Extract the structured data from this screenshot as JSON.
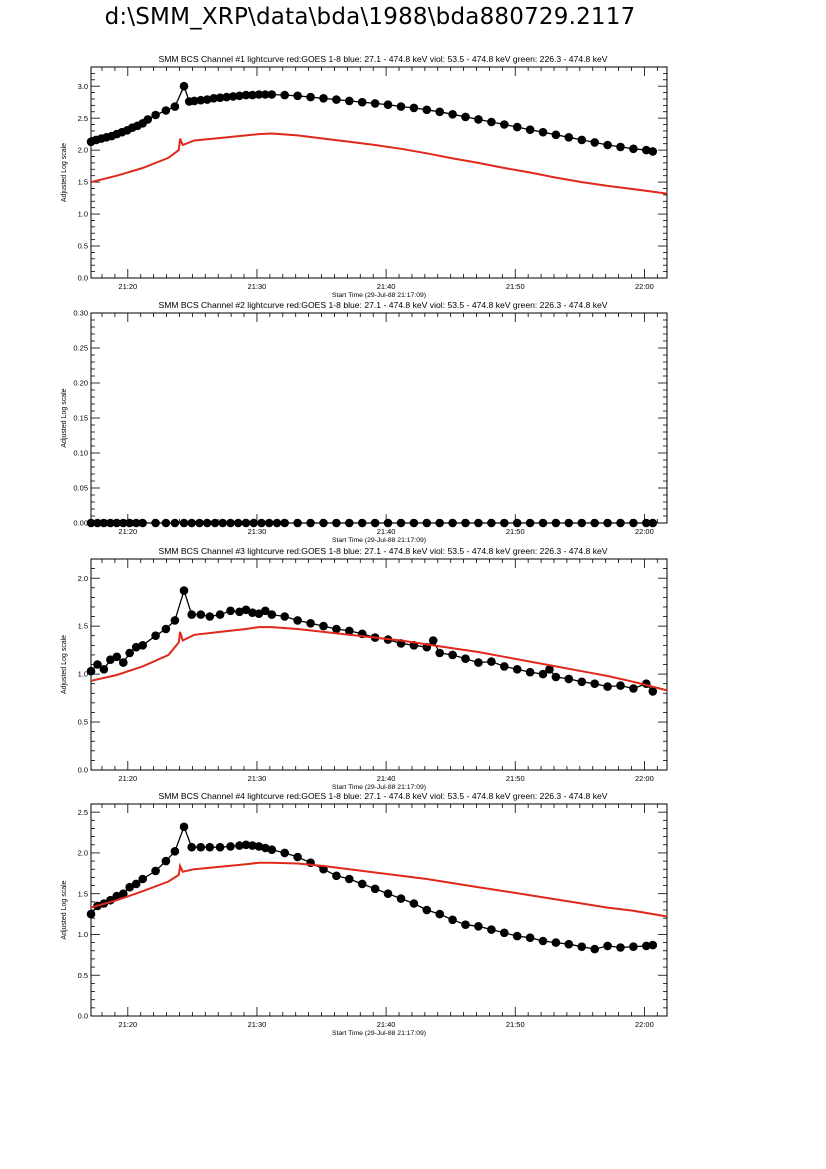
{
  "page": {
    "title": "d:\\SMM_XRP\\data\\bda\\1988\\bda880729.2117"
  },
  "common": {
    "ylabel": "Adjusted Log scale",
    "xlabel": "Start Time (29-Jul-88 21:17:09)",
    "start_time": "21:17:09",
    "x_ticks": [
      "21:20",
      "21:30",
      "21:40",
      "21:50",
      "22:00"
    ],
    "colors": {
      "data": "#000000",
      "goes": "#e0281c"
    }
  },
  "chart_data": [
    {
      "type": "scatter",
      "title": "SMM BCS Channel #1 lightcurve  red:GOES 1-8  blue: 27.1 - 474.8 keV  viol: 53.5 - 474.8 keV  green: 226.3 - 474.8 keV",
      "xlabel": "Start Time (29-Jul-88 21:17:09)",
      "ylabel": "Adjusted Log scale",
      "xlim_minutes": [
        0,
        44.6
      ],
      "ylim": [
        0,
        3.3
      ],
      "y_ticks": [
        0.0,
        0.5,
        1.0,
        1.5,
        2.0,
        2.5,
        3.0
      ],
      "y_tick_labels": [
        "0.0",
        "0.5",
        "1.0",
        "1.5",
        "2.0",
        "2.5",
        "3.0"
      ],
      "series": [
        {
          "role": "bcs",
          "color": "#000000",
          "marker": "circle",
          "x_minutes": [
            0.0,
            0.4,
            0.8,
            1.2,
            1.6,
            2.0,
            2.4,
            2.8,
            3.2,
            3.6,
            4.0,
            4.4,
            5.0,
            5.8,
            6.5,
            7.2,
            7.6,
            8.0,
            8.5,
            9.0,
            9.5,
            10.0,
            10.5,
            11.0,
            11.5,
            12.0,
            12.5,
            13.0,
            13.5,
            14.0,
            15.0,
            16.0,
            17.0,
            18.0,
            19.0,
            20.0,
            21.0,
            22.0,
            23.0,
            24.0,
            25.0,
            26.0,
            27.0,
            28.0,
            29.0,
            30.0,
            31.0,
            32.0,
            33.0,
            34.0,
            35.0,
            36.0,
            37.0,
            38.0,
            39.0,
            40.0,
            41.0,
            42.0,
            43.0,
            43.5
          ],
          "y": [
            2.13,
            2.16,
            2.18,
            2.2,
            2.22,
            2.25,
            2.28,
            2.31,
            2.35,
            2.38,
            2.42,
            2.48,
            2.55,
            2.62,
            2.68,
            3.0,
            2.76,
            2.77,
            2.78,
            2.79,
            2.81,
            2.82,
            2.83,
            2.84,
            2.85,
            2.86,
            2.86,
            2.87,
            2.87,
            2.87,
            2.86,
            2.85,
            2.83,
            2.81,
            2.79,
            2.77,
            2.75,
            2.73,
            2.71,
            2.68,
            2.66,
            2.63,
            2.6,
            2.56,
            2.52,
            2.48,
            2.44,
            2.4,
            2.36,
            2.32,
            2.28,
            2.24,
            2.2,
            2.16,
            2.12,
            2.08,
            2.05,
            2.02,
            2.0,
            1.98
          ]
        },
        {
          "role": "goes",
          "name": "red:GOES 1-8",
          "color": "#e0281c",
          "marker": "none",
          "x_minutes": [
            0,
            2,
            4,
            6,
            6.8,
            6.9,
            7.1,
            8,
            10,
            12,
            13,
            14,
            16,
            18,
            20,
            22,
            24,
            26,
            28,
            30,
            32,
            34,
            36,
            38,
            40,
            42,
            44.6
          ],
          "y": [
            1.5,
            1.6,
            1.72,
            1.88,
            2.0,
            2.18,
            2.08,
            2.15,
            2.19,
            2.23,
            2.25,
            2.26,
            2.23,
            2.18,
            2.13,
            2.08,
            2.02,
            1.95,
            1.87,
            1.8,
            1.72,
            1.65,
            1.57,
            1.5,
            1.44,
            1.39,
            1.32
          ]
        }
      ]
    },
    {
      "type": "scatter",
      "title": "SMM BCS Channel #2 lightcurve  red:GOES 1-8  blue: 27.1 - 474.8 keV  viol: 53.5 - 474.8 keV  green: 226.3 - 474.8 keV",
      "xlabel": "Start Time (29-Jul-88 21:17:09)",
      "ylabel": "Adjusted Log scale",
      "xlim_minutes": [
        0,
        44.6
      ],
      "ylim": [
        0,
        0.3
      ],
      "y_ticks": [
        0.0,
        0.05,
        0.1,
        0.15,
        0.2,
        0.25,
        0.3
      ],
      "y_tick_labels": [
        "0.00",
        "0.05",
        "0.10",
        "0.15",
        "0.20",
        "0.25",
        "0.30"
      ],
      "series": [
        {
          "role": "bcs",
          "color": "#000000",
          "marker": "circle",
          "x_minutes": [
            0.0,
            0.5,
            1.0,
            1.5,
            2.0,
            2.5,
            3.0,
            3.5,
            4.0,
            5.0,
            5.8,
            6.5,
            7.2,
            7.8,
            8.4,
            9.0,
            9.6,
            10.2,
            10.8,
            11.4,
            12.0,
            12.6,
            13.2,
            13.8,
            14.4,
            15.0,
            16.0,
            17.0,
            18.0,
            19.0,
            20.0,
            21.0,
            22.0,
            23.0,
            24.0,
            25.0,
            26.0,
            27.0,
            28.0,
            29.0,
            30.0,
            31.0,
            32.0,
            33.0,
            34.0,
            35.0,
            36.0,
            37.0,
            38.0,
            39.0,
            40.0,
            41.0,
            42.0,
            43.0,
            43.5
          ],
          "y": [
            0,
            0,
            0,
            0,
            0,
            0,
            0,
            0,
            0,
            0,
            0,
            0,
            0,
            0,
            0,
            0,
            0,
            0,
            0,
            0,
            0,
            0,
            0,
            0,
            0,
            0,
            0,
            0,
            0,
            0,
            0,
            0,
            0,
            0,
            0,
            0,
            0,
            0,
            0,
            0,
            0,
            0,
            0,
            0,
            0,
            0,
            0,
            0,
            0,
            0,
            0,
            0,
            0,
            0,
            0
          ]
        }
      ]
    },
    {
      "type": "scatter",
      "title": "SMM BCS Channel #3 lightcurve  red:GOES 1-8  blue: 27.1 - 474.8 keV  viol: 53.5 - 474.8 keV  green: 226.3 - 474.8 keV",
      "xlabel": "Start Time (29-Jul-88 21:17:09)",
      "ylabel": "Adjusted Log scale",
      "xlim_minutes": [
        0,
        44.6
      ],
      "ylim": [
        0,
        2.2
      ],
      "y_ticks": [
        0.0,
        0.5,
        1.0,
        1.5,
        2.0
      ],
      "y_tick_labels": [
        "0.0",
        "0.5",
        "1.0",
        "1.5",
        "2.0"
      ],
      "series": [
        {
          "role": "bcs",
          "color": "#000000",
          "marker": "circle",
          "x_minutes": [
            0.0,
            0.5,
            1.0,
            1.5,
            2.0,
            2.5,
            3.0,
            3.5,
            4.0,
            5.0,
            5.8,
            6.5,
            7.2,
            7.8,
            8.5,
            9.2,
            10.0,
            10.8,
            11.5,
            12.0,
            12.5,
            13.0,
            13.5,
            14.0,
            15.0,
            16.0,
            17.0,
            18.0,
            19.0,
            20.0,
            21.0,
            22.0,
            23.0,
            24.0,
            25.0,
            26.0,
            26.5,
            27.0,
            28.0,
            29.0,
            30.0,
            31.0,
            32.0,
            33.0,
            34.0,
            35.0,
            35.5,
            36.0,
            37.0,
            38.0,
            39.0,
            40.0,
            41.0,
            42.0,
            43.0,
            43.5
          ],
          "y": [
            1.03,
            1.1,
            1.05,
            1.15,
            1.18,
            1.12,
            1.22,
            1.28,
            1.3,
            1.4,
            1.47,
            1.56,
            1.87,
            1.62,
            1.62,
            1.6,
            1.62,
            1.66,
            1.65,
            1.67,
            1.64,
            1.63,
            1.66,
            1.62,
            1.6,
            1.56,
            1.53,
            1.5,
            1.47,
            1.45,
            1.42,
            1.38,
            1.36,
            1.32,
            1.3,
            1.28,
            1.35,
            1.22,
            1.2,
            1.16,
            1.12,
            1.13,
            1.08,
            1.05,
            1.02,
            1.0,
            1.05,
            0.97,
            0.95,
            0.92,
            0.9,
            0.87,
            0.88,
            0.85,
            0.9,
            0.82
          ]
        },
        {
          "role": "goes",
          "name": "red:GOES 1-8",
          "color": "#e0281c",
          "marker": "none",
          "x_minutes": [
            0,
            2,
            4,
            6,
            6.8,
            6.9,
            7.1,
            8,
            10,
            12,
            13,
            14,
            16,
            18,
            20,
            22,
            24,
            26,
            28,
            30,
            32,
            34,
            36,
            38,
            40,
            42,
            44.6
          ],
          "y": [
            0.93,
            0.99,
            1.08,
            1.2,
            1.33,
            1.44,
            1.35,
            1.41,
            1.44,
            1.47,
            1.49,
            1.49,
            1.47,
            1.44,
            1.41,
            1.38,
            1.35,
            1.31,
            1.27,
            1.23,
            1.18,
            1.13,
            1.08,
            1.03,
            0.98,
            0.92,
            0.83
          ]
        }
      ]
    },
    {
      "type": "scatter",
      "title": "SMM BCS Channel #4 lightcurve  red:GOES 1-8  blue: 27.1 - 474.8 keV  viol: 53.5 - 474.8 keV  green: 226.3 - 474.8 keV",
      "xlabel": "Start Time (29-Jul-88 21:17:09)",
      "ylabel": "Adjusted Log scale",
      "xlim_minutes": [
        0,
        44.6
      ],
      "ylim": [
        0,
        2.6
      ],
      "y_ticks": [
        0.0,
        0.5,
        1.0,
        1.5,
        2.0,
        2.5
      ],
      "y_tick_labels": [
        "0.0",
        "0.5",
        "1.0",
        "1.5",
        "2.0",
        "2.5"
      ],
      "series": [
        {
          "role": "bcs",
          "color": "#000000",
          "marker": "circle",
          "x_minutes": [
            0.0,
            0.5,
            1.0,
            1.5,
            2.0,
            2.5,
            3.0,
            3.5,
            4.0,
            5.0,
            5.8,
            6.5,
            7.2,
            7.8,
            8.5,
            9.2,
            10.0,
            10.8,
            11.5,
            12.0,
            12.5,
            13.0,
            13.5,
            14.0,
            15.0,
            16.0,
            17.0,
            18.0,
            19.0,
            20.0,
            21.0,
            22.0,
            23.0,
            24.0,
            25.0,
            26.0,
            27.0,
            28.0,
            29.0,
            30.0,
            31.0,
            32.0,
            33.0,
            34.0,
            35.0,
            36.0,
            37.0,
            38.0,
            39.0,
            40.0,
            41.0,
            42.0,
            43.0,
            43.5
          ],
          "y": [
            1.25,
            1.35,
            1.38,
            1.42,
            1.47,
            1.5,
            1.58,
            1.62,
            1.68,
            1.78,
            1.9,
            2.02,
            2.32,
            2.07,
            2.07,
            2.07,
            2.07,
            2.08,
            2.09,
            2.1,
            2.09,
            2.08,
            2.06,
            2.04,
            2.0,
            1.95,
            1.88,
            1.8,
            1.72,
            1.68,
            1.62,
            1.56,
            1.5,
            1.44,
            1.38,
            1.3,
            1.25,
            1.18,
            1.12,
            1.1,
            1.06,
            1.02,
            0.98,
            0.96,
            0.92,
            0.9,
            0.88,
            0.85,
            0.82,
            0.86,
            0.84,
            0.85,
            0.86,
            0.87
          ]
        },
        {
          "role": "goes",
          "name": "red:GOES 1-8",
          "color": "#e0281c",
          "marker": "none",
          "x_minutes": [
            0,
            2,
            4,
            6,
            6.8,
            6.9,
            7.1,
            8,
            10,
            12,
            13,
            14,
            16,
            18,
            20,
            22,
            24,
            26,
            28,
            30,
            32,
            34,
            36,
            38,
            40,
            42,
            44.6
          ],
          "y": [
            1.33,
            1.42,
            1.53,
            1.65,
            1.73,
            1.84,
            1.77,
            1.8,
            1.83,
            1.86,
            1.88,
            1.88,
            1.87,
            1.84,
            1.8,
            1.76,
            1.72,
            1.68,
            1.63,
            1.58,
            1.53,
            1.48,
            1.43,
            1.38,
            1.33,
            1.29,
            1.22
          ]
        }
      ]
    }
  ]
}
